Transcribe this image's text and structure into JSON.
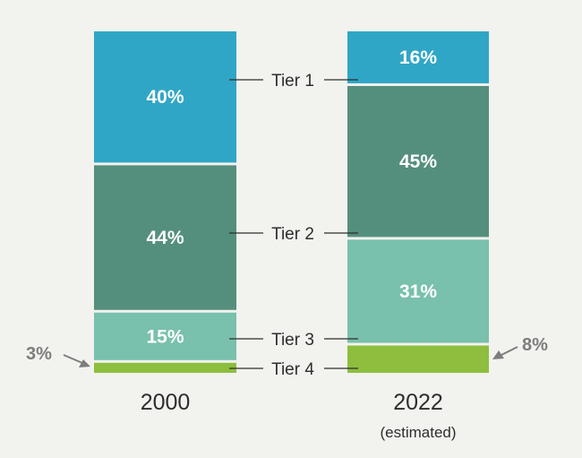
{
  "chart_data": {
    "type": "bar",
    "stacked": true,
    "percent_stacked": true,
    "categories": [
      "2000",
      "2022"
    ],
    "category_sublabels": [
      "",
      "(estimated)"
    ],
    "series": [
      {
        "name": "Tier 1",
        "color": "#30a6c6",
        "values": [
          40,
          16
        ],
        "labels": [
          "40%",
          "16%"
        ]
      },
      {
        "name": "Tier 2",
        "color": "#548f7d",
        "values": [
          44,
          45
        ],
        "labels": [
          "44%",
          "45%"
        ]
      },
      {
        "name": "Tier 3",
        "color": "#79c0ad",
        "values": [
          15,
          31
        ],
        "labels": [
          "15%",
          "31%"
        ]
      },
      {
        "name": "Tier 4",
        "color": "#8dbe3e",
        "values": [
          3,
          8
        ],
        "labels": [
          "3%",
          "8%"
        ]
      }
    ],
    "ylim": [
      0,
      100
    ],
    "grid": false,
    "legend": "series labels placed between the two bars"
  }
}
